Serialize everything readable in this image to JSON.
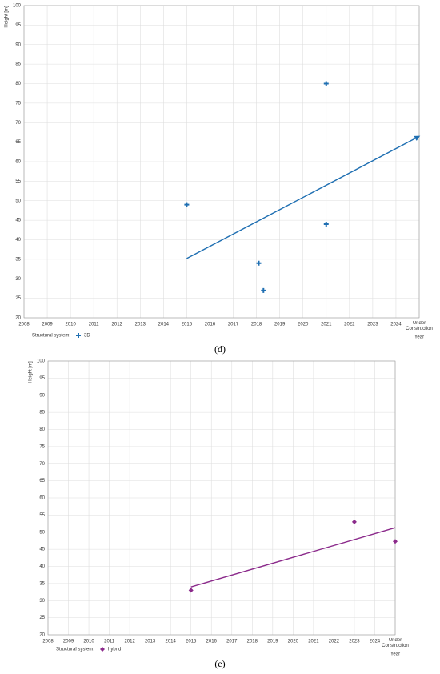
{
  "chart_data": [
    {
      "type": "scatter",
      "caption": "(d)",
      "y_label": "Height [m]",
      "x_label": "Year",
      "legend_title": "Structural system:",
      "xlim": [
        2008,
        2025
      ],
      "ylim": [
        20,
        100
      ],
      "xticks": [
        2008,
        2009,
        2010,
        2011,
        2012,
        2013,
        2014,
        2015,
        2016,
        2017,
        2018,
        2019,
        2020,
        2021,
        2022,
        2023,
        2024,
        {
          "value": 2025,
          "label": "Under Construction"
        }
      ],
      "yticks": [
        20,
        25,
        30,
        35,
        40,
        45,
        50,
        55,
        60,
        65,
        70,
        75,
        80,
        85,
        90,
        95,
        100
      ],
      "grid": true,
      "series": [
        {
          "name": "3D",
          "color": "#1f6fb2",
          "marker": "plus",
          "x": [
            2015,
            2018.1,
            2018.3,
            2021,
            2021
          ],
          "values": [
            49,
            34,
            27,
            80,
            44
          ]
        }
      ],
      "trendline": {
        "color": "#1f6fb2",
        "arrow": true,
        "x": [
          2015,
          2025
        ],
        "values": [
          35.2,
          66.5
        ]
      }
    },
    {
      "type": "scatter",
      "caption": "(e)",
      "y_label": "Height [m]",
      "x_label": "Year",
      "legend_title": "Structural system:",
      "xlim": [
        2008,
        2025
      ],
      "ylim": [
        20,
        100
      ],
      "xticks": [
        2008,
        2009,
        2010,
        2011,
        2012,
        2013,
        2014,
        2015,
        2016,
        2017,
        2018,
        2019,
        2020,
        2021,
        2022,
        2023,
        2024,
        {
          "value": 2025,
          "label": "Under Construction"
        }
      ],
      "yticks": [
        20,
        25,
        30,
        35,
        40,
        45,
        50,
        55,
        60,
        65,
        70,
        75,
        80,
        85,
        90,
        95,
        100
      ],
      "grid": true,
      "series": [
        {
          "name": "hybrid",
          "color": "#8b2a8b",
          "marker": "diamond",
          "x": [
            2015,
            2023,
            2025
          ],
          "values": [
            33,
            53,
            47.3
          ]
        }
      ],
      "trendline": {
        "color": "#8b2a8b",
        "arrow": false,
        "x": [
          2015,
          2025
        ],
        "values": [
          34,
          51.3
        ]
      }
    }
  ]
}
